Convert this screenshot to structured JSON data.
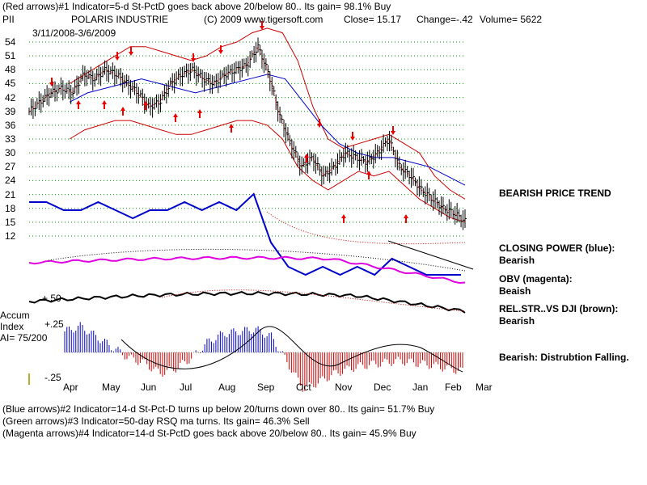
{
  "header": {
    "line1": "(Red arrows)#1 Indicator=5-d St-PctD goes back above 20/below 80.. Its gain= 98.1% Buy",
    "ticker": "PII",
    "company": "POLARIS INDUSTRIE",
    "source": "(C) 2009 www.tigersoft.com",
    "close": "Close=  15.17",
    "change": "Change=-.42",
    "volume": "Volume= 5622",
    "date_range": "3/11/2008-3/6/2009"
  },
  "footer": {
    "line1": "(Blue arrows)#2 Indicator=14-d St-Pct-D turns up below 20/turns down over 80.. Its gain= 51.7% Buy",
    "line2": "(Green arrows)#3 Indicator=50-day RSQ ma turns. Its gain= 46.3% Sell",
    "line3": "(Magenta arrows)#4 Indicator=14-d St-PctD goes back above 20/below 80.. Its gain= 45.9% Buy"
  },
  "right_panel": {
    "trend": "BEARISH PRICE TREND",
    "closing_power_1": "CLOSING POWER (blue):",
    "closing_power_2": "Bearish",
    "obv_1": "OBV (magenta):",
    "obv_2": "Beaish",
    "relstr_1": "REL.STR..VS DJI (brown):",
    "relstr_2": "Bearish",
    "accum": "Bearish: Distrubtion Falling."
  },
  "left_labels": {
    "plus50": "+.50",
    "accum1": "Accum",
    "accum2": "Index",
    "ai": "AI= 75/200",
    "plus25": "+.25",
    "minus25": "-.25"
  },
  "colors": {
    "price_bars": "#000000",
    "bands": "#cc0000",
    "ma_blue": "#0000cc",
    "closing_power": "#0000cc",
    "obv": "#e000e0",
    "rel_str": "#000000",
    "accum_pos": "#0000cc",
    "accum_neg": "#cc0000",
    "arrows": "#ee0000",
    "grid": "#00a000"
  },
  "chart_data": {
    "type": "line",
    "title": "POLARIS INDUSTRIE",
    "x_ticks": [
      "Apr",
      "May",
      "Jun",
      "Jul",
      "Aug",
      "Sep",
      "Oct",
      "Nov",
      "Dec",
      "Jan",
      "Feb",
      "Mar"
    ],
    "y_ticks": [
      54,
      51,
      48,
      45,
      42,
      39,
      36,
      33,
      30,
      27,
      24,
      21,
      18,
      15,
      12
    ],
    "ylim": [
      12,
      54
    ],
    "grid": true,
    "price_close_approx": [
      39,
      41,
      43,
      44,
      43,
      47,
      46,
      48,
      47,
      45,
      43,
      40,
      41,
      45,
      47,
      48,
      46,
      45,
      47,
      48,
      49,
      53,
      47,
      38,
      32,
      27,
      29,
      25,
      27,
      30,
      29,
      28,
      30,
      33,
      27,
      25,
      22,
      20,
      18,
      17,
      15.17
    ],
    "upper_band_approx": [
      45,
      47,
      49,
      51,
      53,
      53,
      52,
      51,
      50,
      51,
      53,
      54,
      56,
      57,
      56,
      50,
      40,
      33,
      31,
      32,
      33,
      34,
      32,
      30,
      25,
      22,
      20
    ],
    "lower_band_approx": [
      33,
      35,
      36,
      37,
      37,
      36,
      35,
      34,
      34,
      35,
      36,
      37,
      37,
      36,
      33,
      27,
      24,
      22,
      24,
      26,
      25,
      26,
      23,
      20,
      18,
      16,
      15
    ],
    "ma_approx": [
      41,
      43,
      44,
      45,
      46,
      45,
      44,
      43,
      44,
      45,
      46,
      47,
      46,
      41,
      36,
      32,
      30,
      29,
      29,
      28,
      27,
      25,
      23
    ],
    "closing_power_approx": [
      21,
      21,
      20,
      20,
      21,
      20,
      19,
      20,
      20,
      21,
      20,
      21,
      20,
      22,
      16,
      13,
      12,
      13,
      12,
      13,
      12,
      14,
      13,
      12,
      12,
      12
    ],
    "accum_index_approx": [
      0.2,
      0.25,
      0.15,
      0.05,
      -0.05,
      -0.1,
      -0.2,
      -0.15,
      -0.05,
      0.1,
      0.18,
      0.2,
      0.22,
      0.15,
      -0.1,
      -0.35,
      -0.28,
      -0.2,
      -0.15,
      -0.12,
      -0.1,
      -0.08,
      -0.1,
      -0.12,
      -0.15,
      -0.18
    ],
    "accum_ylim": [
      -0.35,
      0.3
    ]
  }
}
